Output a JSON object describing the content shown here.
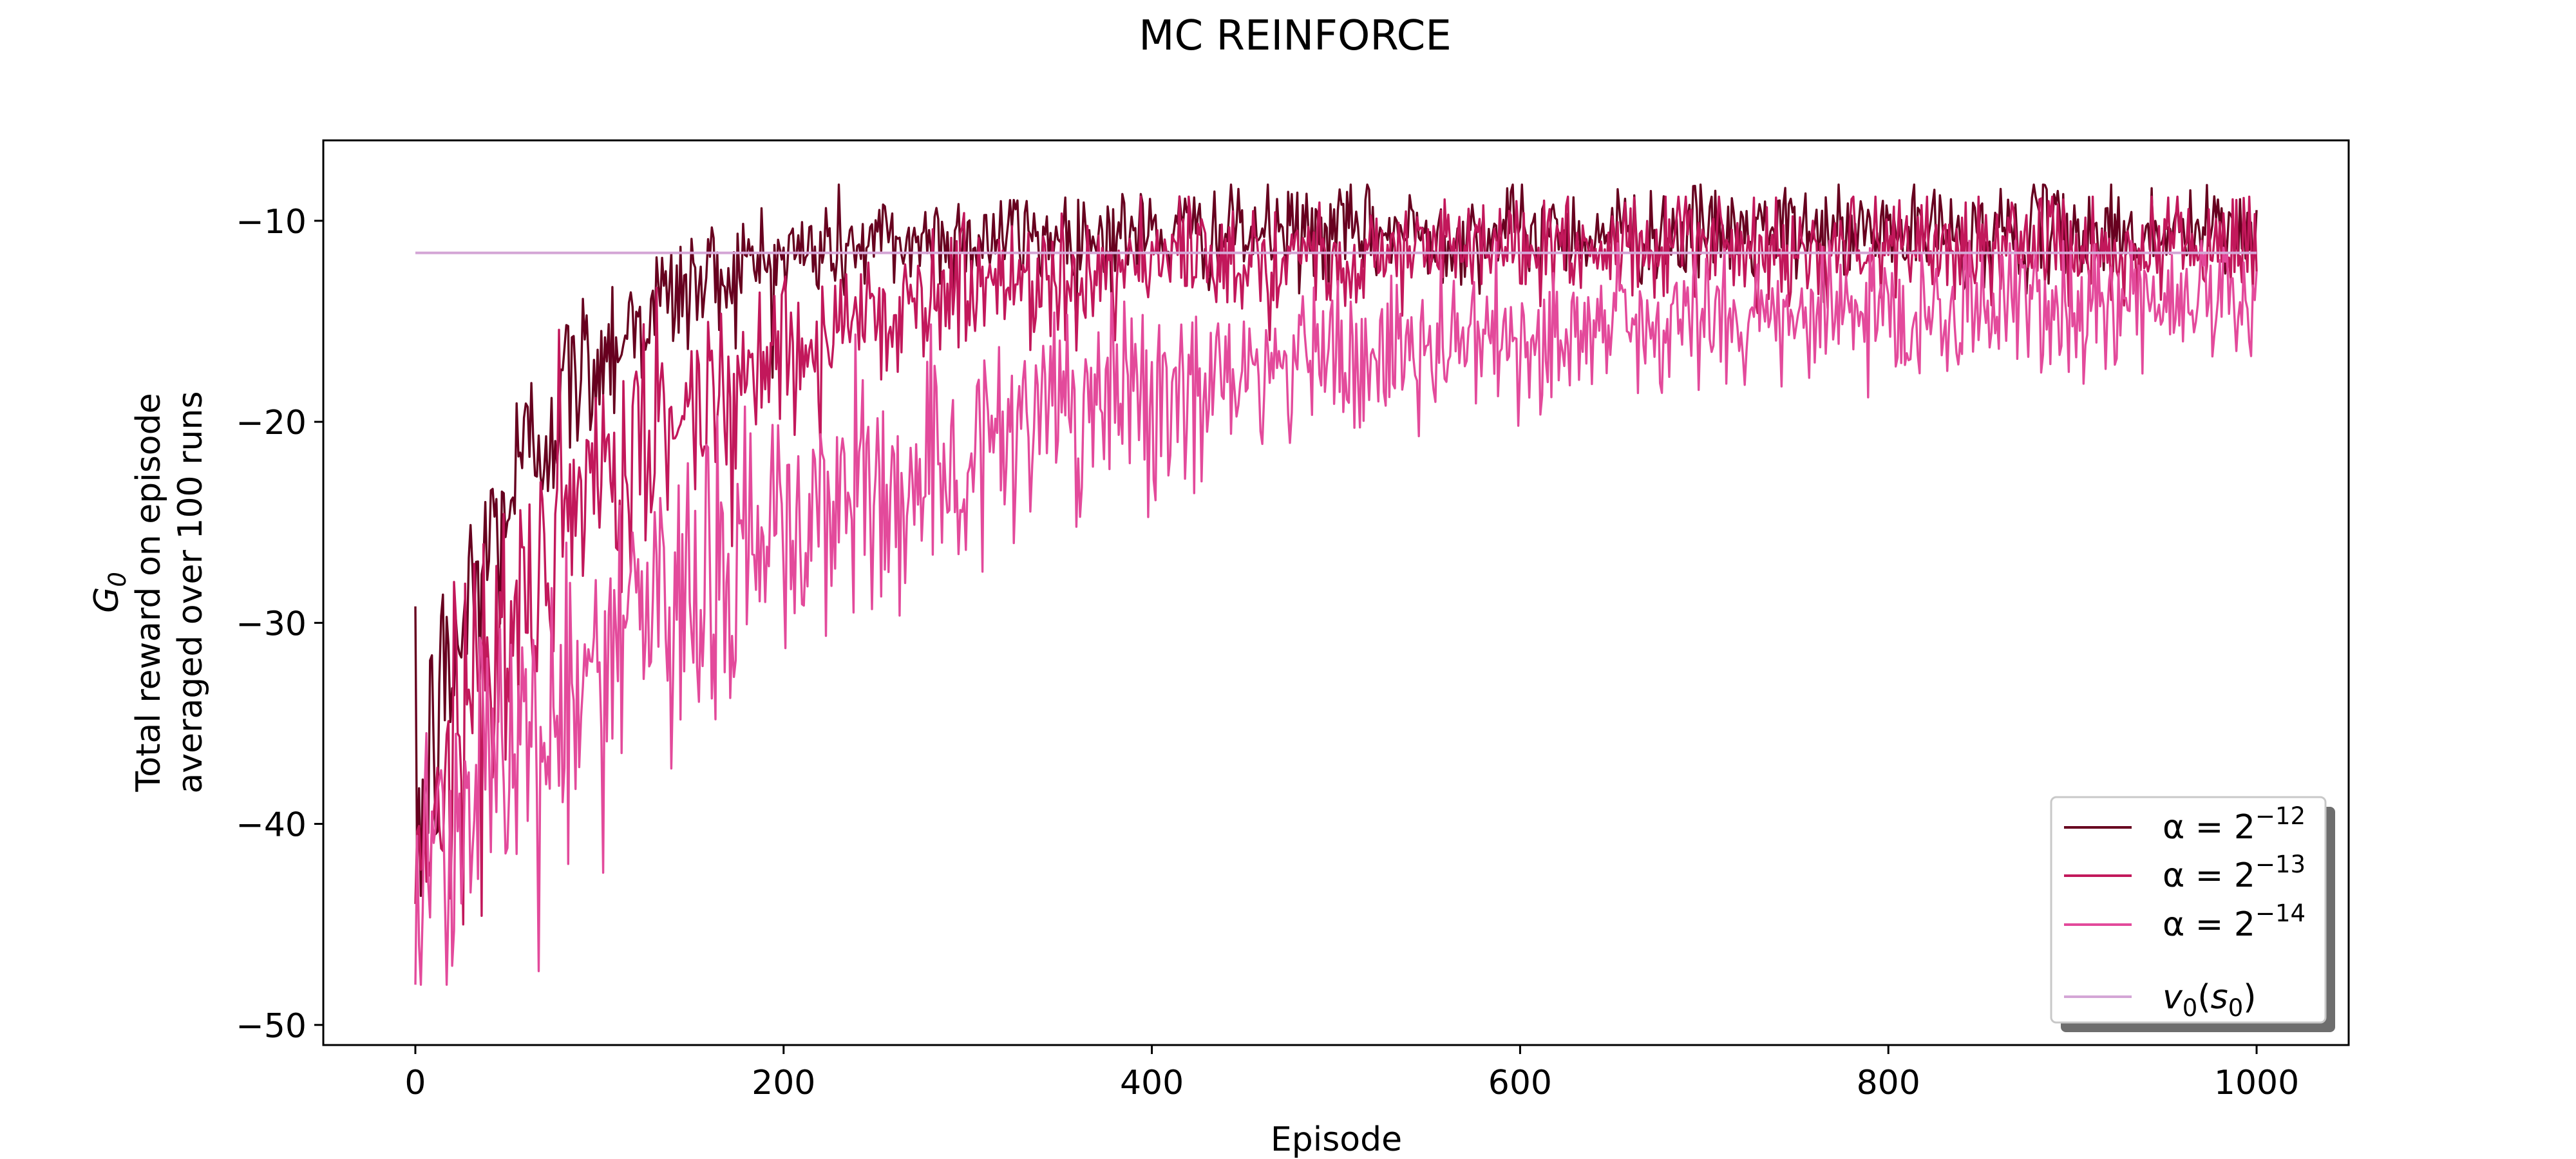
{
  "chart_data": {
    "type": "line",
    "title": "MC REINFORCE",
    "xlabel": "Episode",
    "ylabel_lines": [
      "G_0",
      "Total reward on episode",
      "averaged over 100 runs"
    ],
    "xlim": [
      -50,
      1050
    ],
    "ylim": [
      -51,
      -6
    ],
    "xticks": [
      0,
      200,
      400,
      600,
      800,
      1000
    ],
    "yticks": [
      -50,
      -40,
      -30,
      -20,
      -10
    ],
    "grid": false,
    "legend_position": "bottom-right",
    "episodes": 1000,
    "series": [
      {
        "name": "α = 2^-12",
        "label_base": "α = 2",
        "label_exp": "−12",
        "color": "#67001f",
        "style": "noisy",
        "mean_curve": {
          "y_start": -40.5,
          "y_end": -10.6,
          "decay_episodes": 62
        },
        "noise_amplitude": 1.2,
        "y_min": -49.0,
        "y_max": -8.2
      },
      {
        "name": "α = 2^-13",
        "label_base": "α = 2",
        "label_exp": "−13",
        "color": "#c2185b",
        "style": "noisy",
        "mean_curve": {
          "y_start": -41.0,
          "y_end": -11.2,
          "decay_episodes": 115
        },
        "noise_amplitude": 1.3,
        "y_min": -45.0,
        "y_max": -8.8
      },
      {
        "name": "α = 2^-14",
        "label_base": "α = 2",
        "label_exp": "−14",
        "color": "#e34a9b",
        "style": "noisy",
        "mean_curve": {
          "y_start": -42.0,
          "y_end": -13.6,
          "decay_episodes": 235
        },
        "noise_amplitude": 1.5,
        "y_min": -48.0,
        "y_max": -11.0
      },
      {
        "name": "v0(s0)",
        "label_base": "v",
        "label_sub": "0",
        "label_paren_var": "s",
        "label_paren_sub": "0",
        "color": "#d4a6d6",
        "style": "constant",
        "value": -11.6
      }
    ]
  }
}
